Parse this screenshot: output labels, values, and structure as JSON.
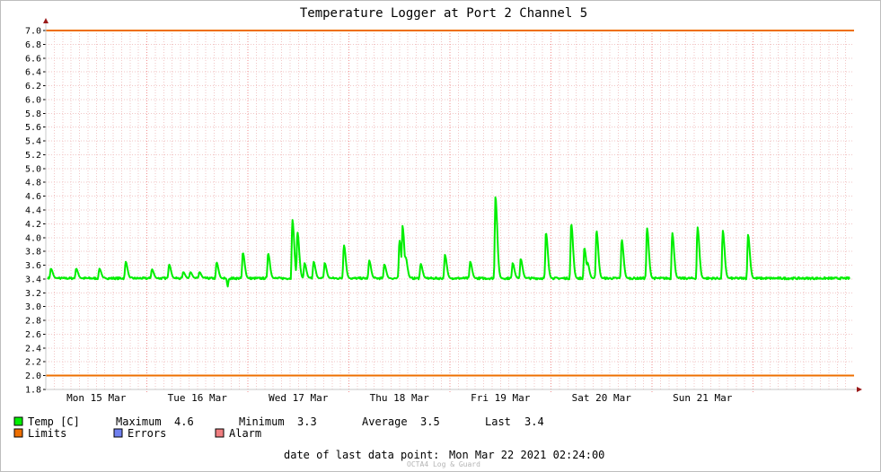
{
  "chart_data": {
    "type": "line",
    "title": "Temperature Logger at Port 2 Channel 5",
    "xlabel": "",
    "ylabel": "",
    "ylim": [
      1.8,
      7.0
    ],
    "ytick_step": 0.2,
    "yticks": [
      "1.8",
      "2.0",
      "2.2",
      "2.4",
      "2.6",
      "2.8",
      "3.0",
      "3.2",
      "3.4",
      "3.6",
      "3.8",
      "4.0",
      "4.2",
      "4.4",
      "4.6",
      "4.8",
      "5.0",
      "5.2",
      "5.4",
      "5.6",
      "5.8",
      "6.0",
      "6.2",
      "6.4",
      "6.6",
      "6.8",
      "7.0"
    ],
    "xlim": [
      -1.0,
      7.0
    ],
    "xtick_labels": [
      "Mon 15 Mar",
      "Tue 16 Mar",
      "Wed 17 Mar",
      "Thu 18 Mar",
      "Fri 19 Mar",
      "Sat 20 Mar",
      "Sun 21 Mar"
    ],
    "xtick_label_positions": [
      -0.5,
      0.5,
      1.5,
      2.5,
      3.5,
      4.5,
      5.5
    ],
    "day_boundaries": [
      0,
      1,
      2,
      3,
      4,
      5,
      6
    ],
    "grid": true,
    "series": [
      {
        "name": "Temp [C]",
        "color": "#00ee00",
        "baseline": 3.41,
        "noise": 0.015,
        "peaks": [
          [
            -0.95,
            3.55
          ],
          [
            -0.7,
            3.55
          ],
          [
            -0.47,
            3.55
          ],
          [
            -0.21,
            3.65
          ],
          [
            0.05,
            3.54
          ],
          [
            0.22,
            3.61
          ],
          [
            0.36,
            3.5
          ],
          [
            0.43,
            3.5
          ],
          [
            0.52,
            3.5
          ],
          [
            0.69,
            3.64
          ],
          [
            0.95,
            3.78
          ],
          [
            1.2,
            3.77
          ],
          [
            1.44,
            4.26
          ],
          [
            1.49,
            4.08
          ],
          [
            1.56,
            3.63
          ],
          [
            1.65,
            3.65
          ],
          [
            1.76,
            3.63
          ],
          [
            1.95,
            3.89
          ],
          [
            2.2,
            3.67
          ],
          [
            2.35,
            3.61
          ],
          [
            2.5,
            3.96
          ],
          [
            2.53,
            4.17
          ],
          [
            2.56,
            3.72
          ],
          [
            2.71,
            3.62
          ],
          [
            2.95,
            3.75
          ],
          [
            3.2,
            3.65
          ],
          [
            3.45,
            4.59
          ],
          [
            3.62,
            3.63
          ],
          [
            3.7,
            3.69
          ],
          [
            3.95,
            4.07
          ],
          [
            4.2,
            4.2
          ],
          [
            4.33,
            3.85
          ],
          [
            4.36,
            3.64
          ],
          [
            4.45,
            4.1
          ],
          [
            4.7,
            3.97
          ],
          [
            4.95,
            4.14
          ],
          [
            5.2,
            4.07
          ],
          [
            5.45,
            4.15
          ],
          [
            5.7,
            4.1
          ],
          [
            5.95,
            4.04
          ]
        ],
        "dips": [
          [
            0.8,
            3.29
          ]
        ],
        "legend_stats": {
          "maximum_label": "Maximum",
          "maximum": "4.6",
          "minimum_label": "Minimum",
          "minimum": "3.3",
          "average_label": "Average",
          "average": "3.5",
          "last_label": "Last",
          "last": "3.4"
        }
      },
      {
        "name": "Limits",
        "color": "#ee6f00",
        "values": [
          2.0,
          7.0
        ]
      }
    ],
    "legend_extra": [
      {
        "name": "Errors",
        "color": "#7080ef"
      },
      {
        "name": "Alarm",
        "color": "#f07e80"
      }
    ],
    "colors": {
      "grid_minor": "#f2c6c6",
      "grid_major": "#f28e8e",
      "axis": "#c8c8c8",
      "arrow": "#9a1a1a"
    },
    "footer": {
      "label": "date of last data point:",
      "value": "Mon Mar 22 2021 02:24:00"
    },
    "watermark": "OCTA4 Log & Guard"
  }
}
